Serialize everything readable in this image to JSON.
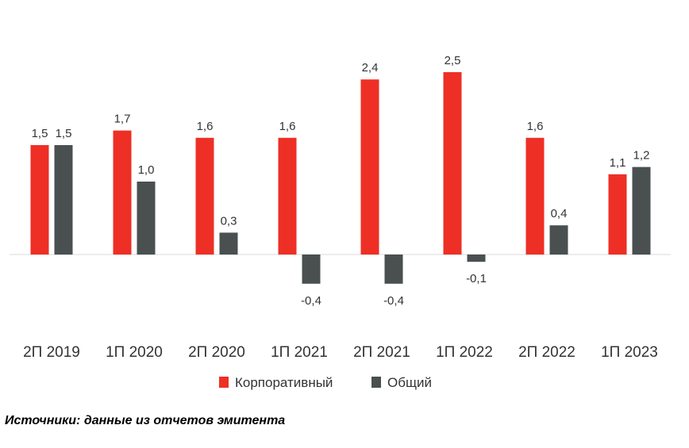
{
  "chart_data": {
    "type": "bar",
    "title": "",
    "xlabel": "",
    "ylabel": "",
    "categories": [
      "2П 2019",
      "1П 2020",
      "2П 2020",
      "1П 2021",
      "2П 2021",
      "1П 2022",
      "2П 2022",
      "1П 2023"
    ],
    "series": [
      {
        "name": "Корпоративный",
        "color": "#ee2f26",
        "values": [
          1.5,
          1.7,
          1.6,
          1.6,
          2.4,
          2.5,
          1.6,
          1.1
        ],
        "labels": [
          "1,5",
          "1,7",
          "1,6",
          "1,6",
          "2,4",
          "2,5",
          "1,6",
          "1,1"
        ]
      },
      {
        "name": "Общий",
        "color": "#4a4f50",
        "values": [
          1.5,
          1.0,
          0.3,
          -0.4,
          -0.4,
          -0.1,
          0.4,
          1.2
        ],
        "labels": [
          "1,5",
          "1,0",
          "0,3",
          "-0,4",
          "-0,4",
          "-0,1",
          "0,4",
          "1,2"
        ]
      }
    ],
    "ylim": [
      -1.0,
      3.0
    ],
    "grid": false,
    "legend_position": "bottom-center"
  },
  "source_note": "Источники: данные из отчетов эмитента"
}
